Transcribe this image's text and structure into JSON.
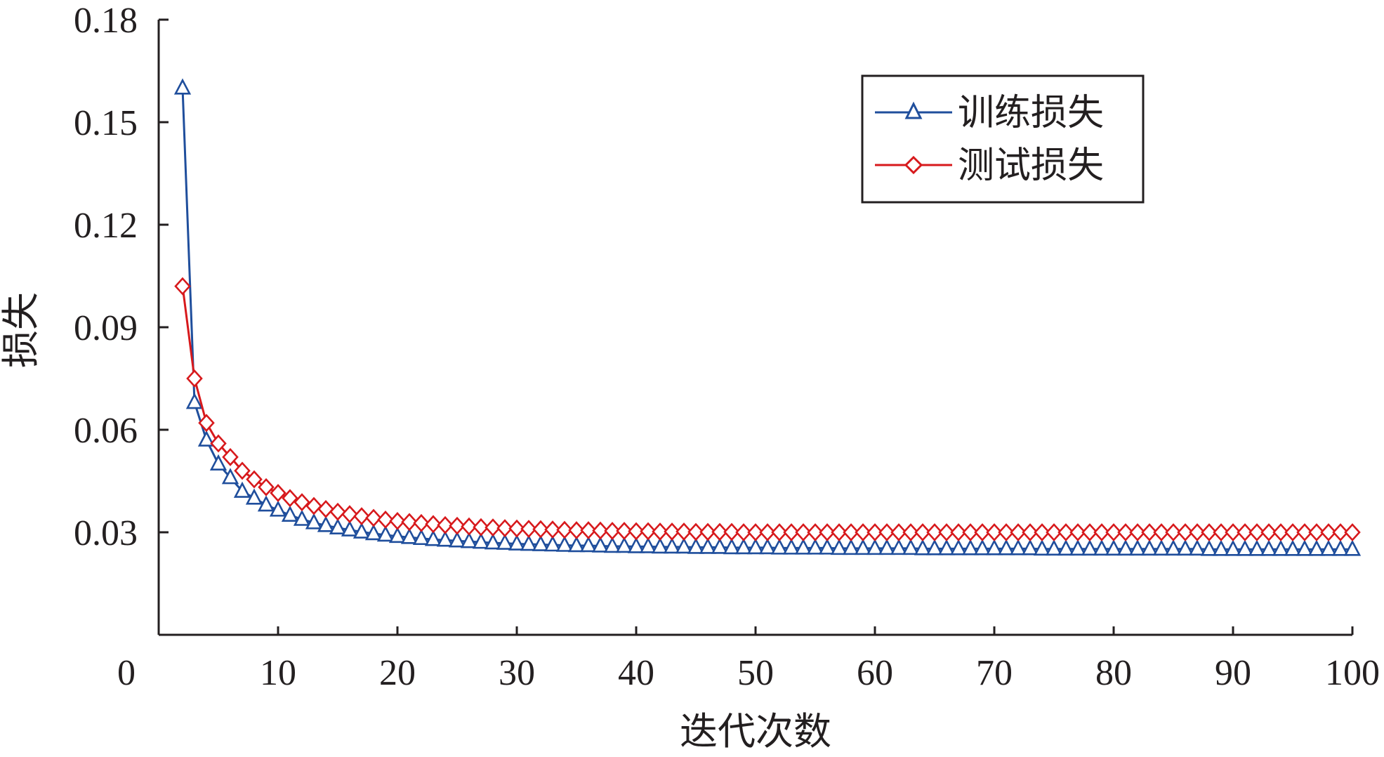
{
  "chart_data": {
    "type": "line",
    "xlabel": "迭代次数",
    "ylabel": "损失",
    "xlim": [
      0,
      100
    ],
    "ylim": [
      0,
      0.18
    ],
    "x_ticks": [
      "0",
      "10",
      "20",
      "30",
      "40",
      "50",
      "60",
      "70",
      "80",
      "90",
      "100"
    ],
    "y_ticks": [
      "0.03",
      "0.06",
      "0.09",
      "0.12",
      "0.15",
      "0.18"
    ],
    "grid": false,
    "legend_position": "top-right",
    "series": [
      {
        "name": "训练损失",
        "color": "#1f4e9c",
        "marker": "triangle",
        "x": [
          2,
          3,
          4,
          5,
          6,
          7,
          8,
          9,
          10,
          11,
          12,
          13,
          14,
          15,
          16,
          17,
          18,
          19,
          20,
          21,
          22,
          23,
          24,
          25,
          26,
          27,
          28,
          29,
          30,
          31,
          32,
          33,
          34,
          35,
          36,
          37,
          38,
          39,
          40,
          41,
          42,
          43,
          44,
          45,
          46,
          47,
          48,
          49,
          50,
          51,
          52,
          53,
          54,
          55,
          56,
          57,
          58,
          59,
          60,
          61,
          62,
          63,
          64,
          65,
          66,
          67,
          68,
          69,
          70,
          71,
          72,
          73,
          74,
          75,
          76,
          77,
          78,
          79,
          80,
          81,
          82,
          83,
          84,
          85,
          86,
          87,
          88,
          89,
          90,
          91,
          92,
          93,
          94,
          95,
          96,
          97,
          98,
          99,
          100
        ],
        "y": [
          0.16,
          0.068,
          0.057,
          0.05,
          0.046,
          0.042,
          0.04,
          0.038,
          0.0365,
          0.035,
          0.0338,
          0.0328,
          0.032,
          0.0313,
          0.0307,
          0.0301,
          0.0296,
          0.0292,
          0.0288,
          0.0285,
          0.0282,
          0.0279,
          0.0277,
          0.0275,
          0.0273,
          0.0271,
          0.0269,
          0.0268,
          0.0266,
          0.0265,
          0.0264,
          0.0263,
          0.0262,
          0.0261,
          0.0261,
          0.026,
          0.0259,
          0.0259,
          0.0258,
          0.0258,
          0.0257,
          0.0257,
          0.0257,
          0.0256,
          0.0256,
          0.0256,
          0.0255,
          0.0255,
          0.0255,
          0.0255,
          0.0254,
          0.0254,
          0.0254,
          0.0254,
          0.0254,
          0.0253,
          0.0253,
          0.0253,
          0.0253,
          0.0253,
          0.0253,
          0.0253,
          0.0252,
          0.0252,
          0.0252,
          0.0252,
          0.0252,
          0.0252,
          0.0252,
          0.0252,
          0.0252,
          0.0252,
          0.0251,
          0.0251,
          0.0251,
          0.0251,
          0.0251,
          0.0251,
          0.0251,
          0.0251,
          0.0251,
          0.0251,
          0.0251,
          0.0251,
          0.0251,
          0.0251,
          0.025,
          0.025,
          0.025,
          0.025,
          0.025,
          0.025,
          0.025,
          0.025,
          0.025,
          0.025,
          0.025,
          0.025,
          0.025
        ]
      },
      {
        "name": "测试损失",
        "color": "#d7191c",
        "marker": "diamond",
        "x": [
          2,
          3,
          4,
          5,
          6,
          7,
          8,
          9,
          10,
          11,
          12,
          13,
          14,
          15,
          16,
          17,
          18,
          19,
          20,
          21,
          22,
          23,
          24,
          25,
          26,
          27,
          28,
          29,
          30,
          31,
          32,
          33,
          34,
          35,
          36,
          37,
          38,
          39,
          40,
          41,
          42,
          43,
          44,
          45,
          46,
          47,
          48,
          49,
          50,
          51,
          52,
          53,
          54,
          55,
          56,
          57,
          58,
          59,
          60,
          61,
          62,
          63,
          64,
          65,
          66,
          67,
          68,
          69,
          70,
          71,
          72,
          73,
          74,
          75,
          76,
          77,
          78,
          79,
          80,
          81,
          82,
          83,
          84,
          85,
          86,
          87,
          88,
          89,
          90,
          91,
          92,
          93,
          94,
          95,
          96,
          97,
          98,
          99,
          100
        ],
        "y": [
          0.102,
          0.075,
          0.062,
          0.056,
          0.052,
          0.048,
          0.0455,
          0.0432,
          0.0415,
          0.04,
          0.0388,
          0.0377,
          0.0368,
          0.036,
          0.0353,
          0.0347,
          0.0342,
          0.0337,
          0.0333,
          0.033,
          0.0327,
          0.0324,
          0.0321,
          0.0319,
          0.0317,
          0.0315,
          0.0314,
          0.0312,
          0.0311,
          0.031,
          0.0309,
          0.0308,
          0.0307,
          0.0306,
          0.0306,
          0.0305,
          0.0304,
          0.0304,
          0.0303,
          0.0303,
          0.0302,
          0.0302,
          0.0302,
          0.0301,
          0.0301,
          0.0301,
          0.0301,
          0.03,
          0.03,
          0.03,
          0.03,
          0.03,
          0.03,
          0.03,
          0.03,
          0.03,
          0.03,
          0.03,
          0.03,
          0.03,
          0.03,
          0.03,
          0.03,
          0.03,
          0.03,
          0.03,
          0.03,
          0.03,
          0.03,
          0.03,
          0.03,
          0.03,
          0.03,
          0.03,
          0.03,
          0.03,
          0.03,
          0.03,
          0.03,
          0.03,
          0.03,
          0.03,
          0.03,
          0.03,
          0.03,
          0.03,
          0.03,
          0.03,
          0.03,
          0.03,
          0.03,
          0.03,
          0.03,
          0.03,
          0.03,
          0.03,
          0.03,
          0.03,
          0.03
        ]
      }
    ]
  }
}
